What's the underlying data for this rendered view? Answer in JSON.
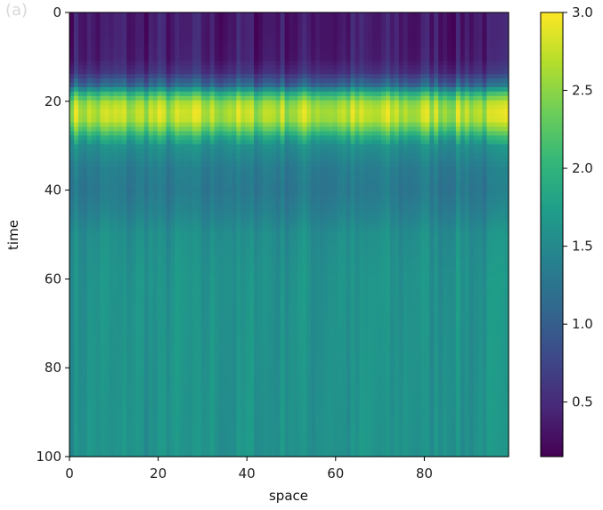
{
  "figure_label": "(a)",
  "chart_data": {
    "type": "heatmap",
    "colormap": "viridis",
    "xlabel": "space",
    "ylabel": "time",
    "xlim": [
      0,
      99
    ],
    "ylim": [
      100,
      0
    ],
    "x_ticks": [
      0,
      20,
      40,
      60,
      80
    ],
    "y_ticks": [
      0,
      20,
      40,
      60,
      80,
      100
    ],
    "colorbar": {
      "range": [
        0.15,
        3.0
      ],
      "ticks": [
        0.5,
        1.0,
        1.5,
        2.0,
        2.5,
        3.0
      ],
      "tick_labels": [
        "0.5",
        "1.0",
        "1.5",
        "2.0",
        "2.5",
        "3.0"
      ]
    },
    "grid": false,
    "time_profile": {
      "time": [
        0,
        5,
        10,
        13,
        16,
        18,
        20,
        22,
        24,
        26,
        28,
        30,
        35,
        40,
        45,
        50,
        60,
        70,
        80,
        90,
        100
      ],
      "mean_value": [
        0.35,
        0.35,
        0.38,
        0.55,
        1.1,
        2.0,
        2.55,
        2.7,
        2.65,
        2.3,
        1.85,
        1.55,
        1.35,
        1.3,
        1.4,
        1.55,
        1.6,
        1.6,
        1.6,
        1.6,
        1.6
      ]
    },
    "note_on_pattern": ""
  }
}
